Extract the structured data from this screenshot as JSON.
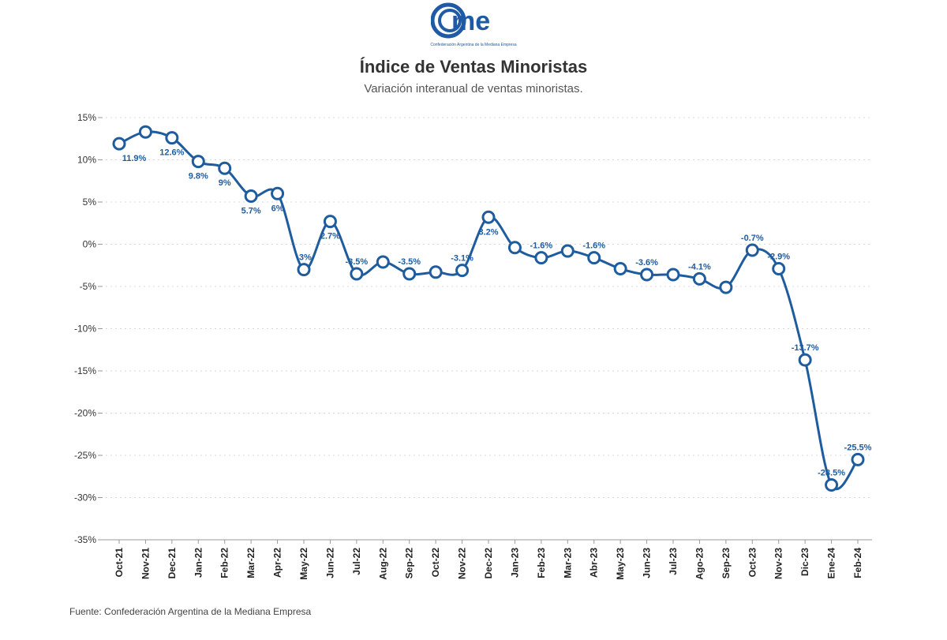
{
  "header": {
    "logo_text": "came",
    "logo_subtitle": "Confederación Argentina de la Mediana Empresa",
    "title": "Índice de Ventas Minoristas",
    "subtitle": "Variación interanual de ventas minoristas."
  },
  "footer": {
    "source": "Fuente: Confederación Argentina de la Mediana Empresa"
  },
  "chart_data": {
    "type": "line",
    "title": "Índice de Ventas Minoristas",
    "subtitle": "Variación interanual de ventas minoristas.",
    "xlabel": "",
    "ylabel": "",
    "ylim": [
      -35,
      15
    ],
    "yticks": [
      15,
      10,
      5,
      0,
      -5,
      -10,
      -15,
      -20,
      -25,
      -30,
      -35
    ],
    "ytick_labels": [
      "15%",
      "10%",
      "5%",
      "0%",
      "-5%",
      "-10%",
      "-15%",
      "-20%",
      "-25%",
      "-30%",
      "-35%"
    ],
    "grid": "horizontal dotted",
    "color": "#1f5c9e",
    "categories": [
      "Oct-21",
      "Nov-21",
      "Dec-21",
      "Jan-22",
      "Feb-22",
      "Mar-22",
      "Apr-22",
      "May-22",
      "Jun-22",
      "Jul-22",
      "Aug-22",
      "Sep-22",
      "Oct-22",
      "Nov-22",
      "Dec-22",
      "Jan-23",
      "Feb-23",
      "Mar-23",
      "Abr-23",
      "May-23",
      "Jun-23",
      "Jul-23",
      "Ago-23",
      "Sep-23",
      "Oct-23",
      "Nov-23",
      "Dic-23",
      "Ene-24",
      "Feb-24"
    ],
    "values": [
      11.9,
      13.3,
      12.6,
      9.8,
      9,
      5.7,
      6,
      -3,
      2.7,
      -3.5,
      -2.1,
      -3.5,
      -3.3,
      -3.1,
      3.2,
      -0.4,
      -1.6,
      -0.8,
      -1.6,
      -2.9,
      -3.6,
      -3.6,
      -4.1,
      -5.1,
      -0.7,
      -2.9,
      -13.7,
      -28.5,
      -25.5
    ],
    "data_labels": [
      "11.9%",
      null,
      "12.6%",
      "9.8%",
      "9%",
      "5.7%",
      "6%",
      "-3%",
      "2.7%",
      "-3.5%",
      null,
      "-3.5%",
      null,
      "-3.1%",
      "3.2%",
      null,
      "-1.6%",
      null,
      "-1.6%",
      null,
      "-3.6%",
      null,
      "-4.1%",
      null,
      "-0.7%",
      "-2.9%",
      "-13.7%",
      "-28.5%",
      "-25.5%"
    ]
  }
}
